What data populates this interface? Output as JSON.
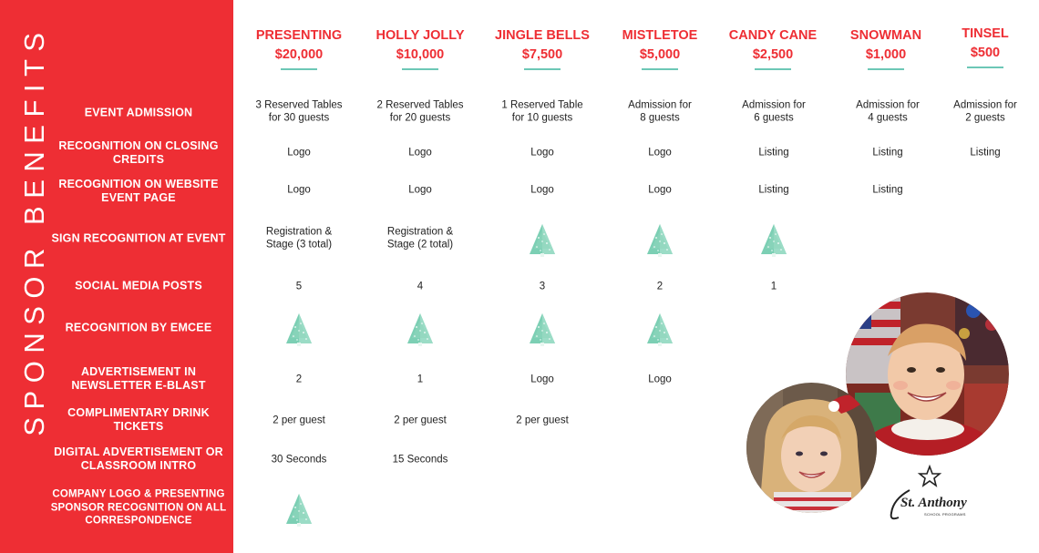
{
  "sidebar": {
    "title": "SPONSOR BENEFITS",
    "rows": [
      "EVENT ADMISSION",
      "RECOGNITION ON CLOSING CREDITS",
      "RECOGNITION ON WEBSITE EVENT PAGE",
      "SIGN  RECOGNITION AT EVENT",
      "SOCIAL MEDIA POSTS",
      "RECOGNITION BY EMCEE",
      "ADVERTISEMENT IN NEWSLETTER E-BLAST",
      "COMPLIMENTARY DRINK TICKETS",
      "DIGITAL ADVERTISEMENT OR CLASSROOM INTRO",
      "COMPANY LOGO & PRESENTING SPONSOR RECOGNITION ON ALL CORRESPONDENCE"
    ]
  },
  "tiers": [
    {
      "name": "PRESENTING",
      "price": "$20,000"
    },
    {
      "name": "HOLLY JOLLY",
      "price": "$10,000"
    },
    {
      "name": "JINGLE BELLS",
      "price": "$7,500"
    },
    {
      "name": "MISTLETOE",
      "price": "$5,000"
    },
    {
      "name": "CANDY CANE",
      "price": "$2,500"
    },
    {
      "name": "SNOWMAN",
      "price": "$1,000"
    },
    {
      "name": "TINSEL",
      "price": "$500"
    }
  ],
  "cells": {
    "admission": [
      "3 Reserved Tables\nfor 30 guests",
      "2 Reserved Tables\nfor 20 guests",
      "1 Reserved Table\nfor 10 guests",
      "Admission for\n8 guests",
      "Admission for\n6 guests",
      "Admission for\n4 guests",
      "Admission for\n2 guests"
    ],
    "closing_credits": [
      "Logo",
      "Logo",
      "Logo",
      "Logo",
      "Listing",
      "Listing",
      "Listing"
    ],
    "website": [
      "Logo",
      "Logo",
      "Logo",
      "Logo",
      "Listing",
      "Listing"
    ],
    "sign": [
      "Registration &\nStage (3 total)",
      "Registration &\nStage (2 total)"
    ],
    "social": [
      "5",
      "4",
      "3",
      "2",
      "1"
    ],
    "newsletter": [
      "2",
      "1",
      "Logo",
      "Logo"
    ],
    "drinks": [
      "2 per guest",
      "2 per guest",
      "2 per guest"
    ],
    "digital": [
      "30 Seconds",
      "15 Seconds"
    ]
  },
  "branding": {
    "logo_text": "St. Anthony",
    "logo_subtext": "SCHOOL PROGRAMS"
  },
  "icons": {
    "included_mark": "christmas-tree-icon"
  },
  "colors": {
    "brand_red": "#ee2e34",
    "accent_teal": "#6cc7b6",
    "tree_green": "#7ccfb4"
  }
}
